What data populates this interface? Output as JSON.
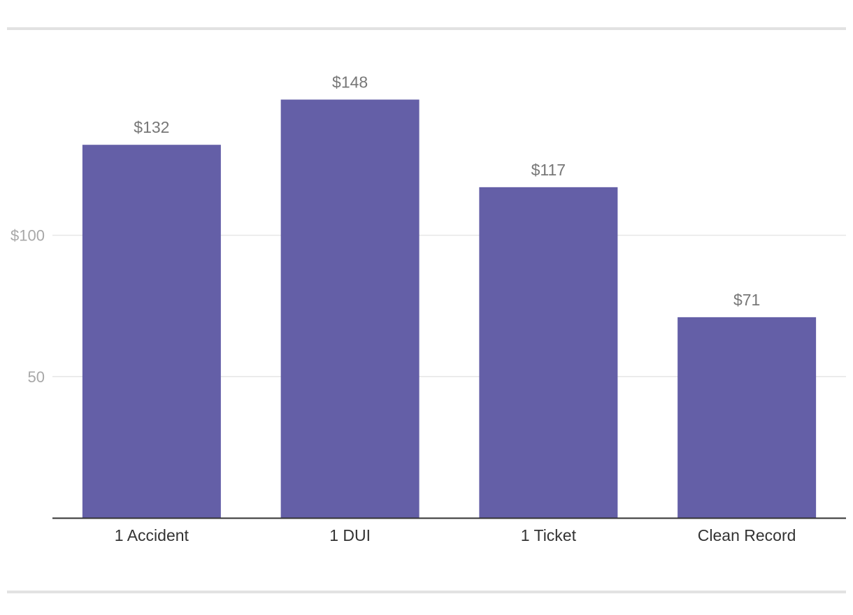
{
  "chart_data": {
    "type": "bar",
    "categories": [
      "1 Accident",
      "1 DUI",
      "1 Ticket",
      "Clean Record"
    ],
    "values": [
      132,
      148,
      117,
      71
    ],
    "value_labels": [
      "$132",
      "$148",
      "$117",
      "$71"
    ],
    "title": "",
    "xlabel": "",
    "ylabel": "",
    "ylim": [
      0,
      148
    ],
    "yticks": [
      {
        "value": 50,
        "label": "50"
      },
      {
        "value": 100,
        "label": "$100"
      }
    ],
    "grid": true,
    "legend": "none",
    "colors": {
      "bar": "#645fa7",
      "grid": "#e6e6e6",
      "axis": "#333333",
      "rule": "#e2e2e2"
    }
  }
}
